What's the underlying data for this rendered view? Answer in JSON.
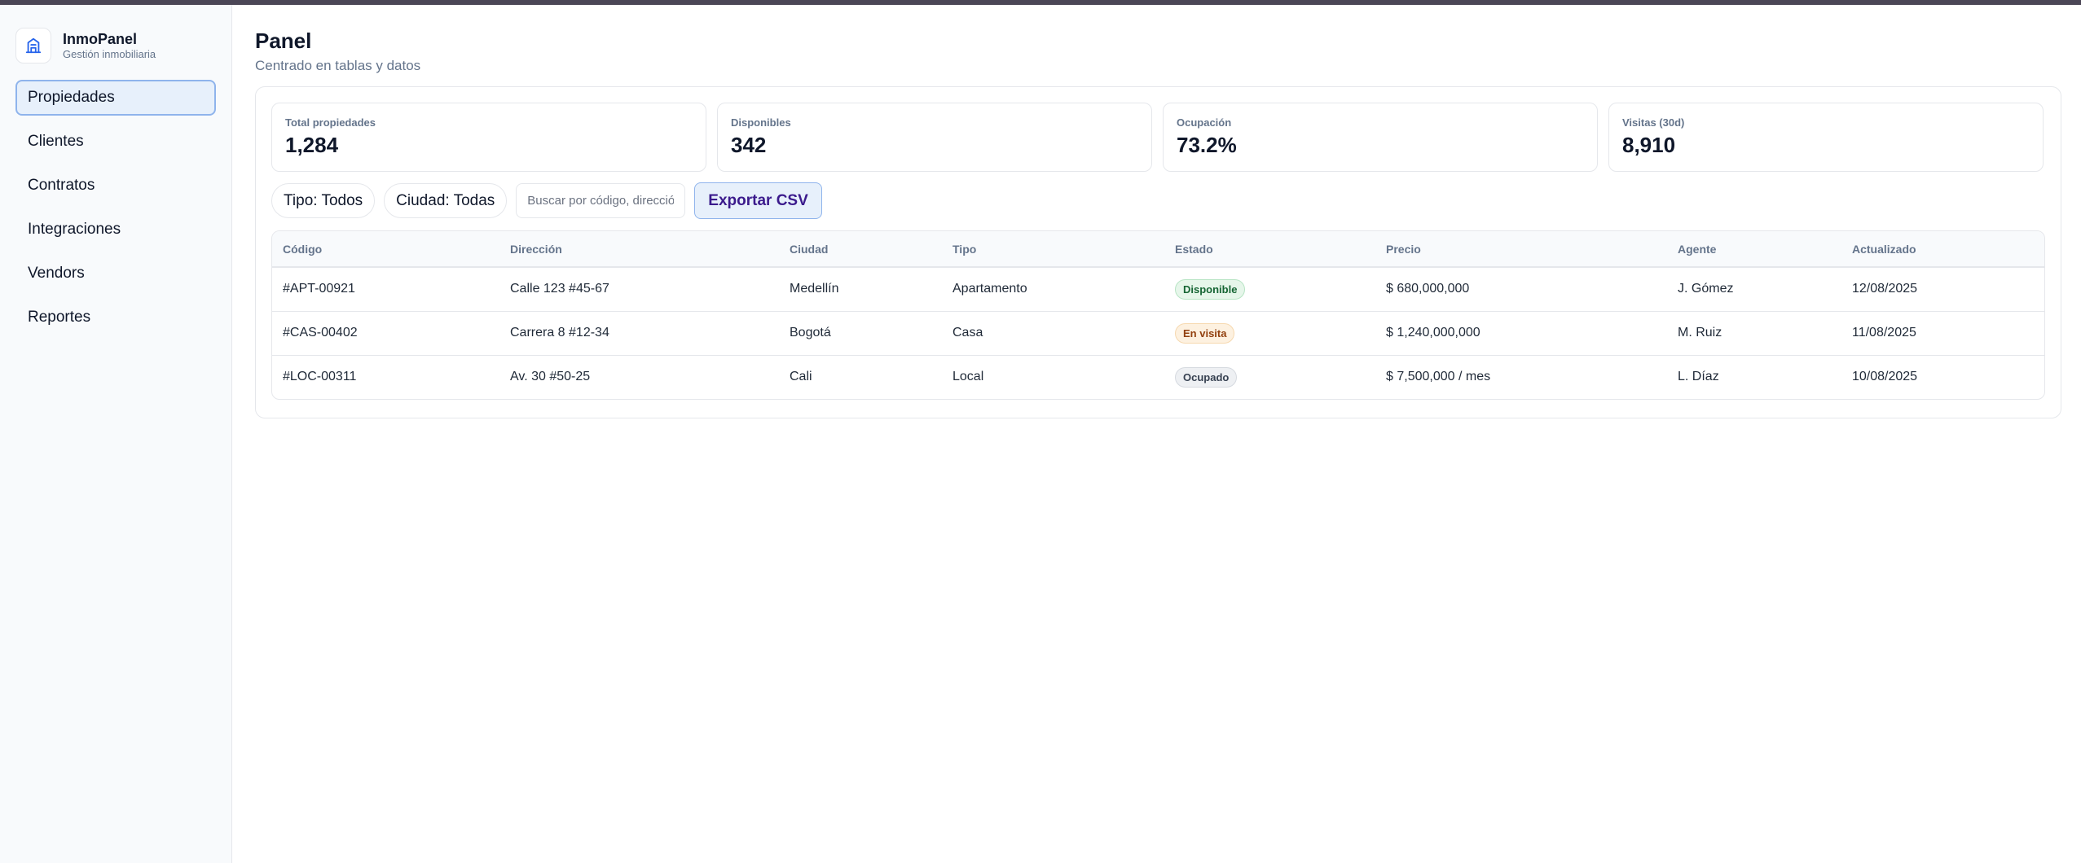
{
  "app": {
    "name": "InmoPanel",
    "subtitle": "Gestión inmobiliaria",
    "logo_icon": "building-icon",
    "accent_color": "#8fb4ec"
  },
  "sidebar": {
    "items": [
      {
        "label": "Propiedades",
        "active": true
      },
      {
        "label": "Clientes",
        "active": false
      },
      {
        "label": "Contratos",
        "active": false
      },
      {
        "label": "Integraciones",
        "active": false
      },
      {
        "label": "Vendors",
        "active": false
      },
      {
        "label": "Reportes",
        "active": false
      }
    ]
  },
  "header": {
    "title": "Panel",
    "subtitle": "Centrado en tablas y datos"
  },
  "stats": [
    {
      "label": "Total propiedades",
      "value": "1,284"
    },
    {
      "label": "Disponibles",
      "value": "342"
    },
    {
      "label": "Ocupación",
      "value": "73.2%"
    },
    {
      "label": "Visitas (30d)",
      "value": "8,910"
    }
  ],
  "filters": {
    "tipo": "Tipo: Todos",
    "ciudad": "Ciudad: Todas",
    "search_placeholder": "Buscar por código, dirección…",
    "search_value": "",
    "export_label": "Exportar CSV"
  },
  "table": {
    "columns": [
      "Código",
      "Dirección",
      "Ciudad",
      "Tipo",
      "Estado",
      "Precio",
      "Agente",
      "Actualizado"
    ],
    "rows": [
      {
        "codigo": "#APT-00921",
        "direccion": "Calle 123 #45-67",
        "ciudad": "Medellín",
        "tipo": "Apartamento",
        "estado": "Disponible",
        "estado_color": "#166534",
        "precio": "$ 680,000,000",
        "agente": "J. Gómez",
        "actualizado": "12/08/2025"
      },
      {
        "codigo": "#CAS-00402",
        "direccion": "Carrera 8 #12-34",
        "ciudad": "Bogotá",
        "tipo": "Casa",
        "estado": "En visita",
        "estado_color": "#92400e",
        "precio": "$ 1,240,000,000",
        "agente": "M. Ruiz",
        "actualizado": "11/08/2025"
      },
      {
        "codigo": "#LOC-00311",
        "direccion": "Av. 30 #50-25",
        "ciudad": "Cali",
        "tipo": "Local",
        "estado": "Ocupado",
        "estado_color": "#374151",
        "precio": "$ 7,500,000 / mes",
        "agente": "L. Díaz",
        "actualizado": "10/08/2025"
      }
    ]
  }
}
